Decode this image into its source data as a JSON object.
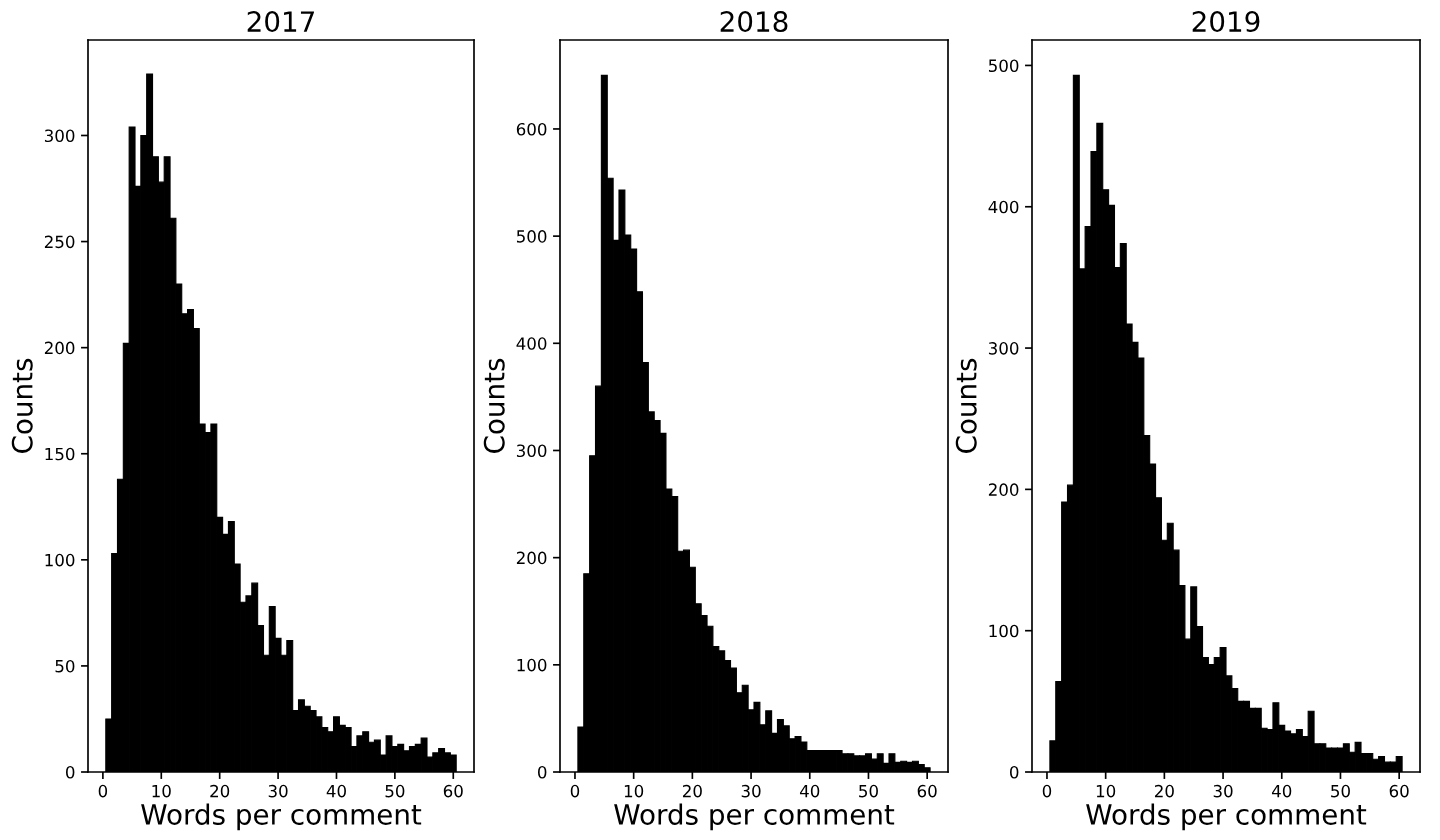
{
  "chart_data": [
    {
      "type": "histogram",
      "title": "2017",
      "xlabel": "Words per comment",
      "ylabel": "Counts",
      "color": "#000000",
      "bins": [
        0.5,
        1.5,
        2.5,
        3.5,
        4.5,
        5.5,
        6.5,
        7.5,
        8.5,
        9.5,
        10.5,
        11.5,
        12.5,
        13.5,
        14.5,
        15.5,
        16.5,
        17.5,
        18.5,
        19.5,
        20.5,
        21.5,
        22.5,
        23.5,
        24.5,
        25.5,
        26.5,
        27.5,
        28.5,
        29.5,
        30.5,
        31.5,
        32.5,
        33.5,
        34.5,
        35.5,
        36.5,
        37.5,
        38.5,
        39.5,
        40.5,
        41.5,
        42.5,
        43.5,
        44.5,
        45.5,
        46.5,
        47.5,
        48.5,
        49.5,
        50.5,
        51.5,
        52.5,
        53.5,
        54.5,
        55.5,
        56.5,
        57.5,
        58.5,
        59.5,
        60.5
      ],
      "values": [
        25,
        103,
        138,
        202,
        304,
        276,
        300,
        329,
        290,
        278,
        290,
        261,
        230,
        216,
        218,
        209,
        164,
        160,
        164,
        120,
        112,
        118,
        98,
        80,
        83,
        89,
        69,
        55,
        78,
        63,
        55,
        62,
        29,
        34,
        31,
        29,
        26,
        21,
        19,
        26,
        22,
        21,
        12,
        17,
        19,
        14,
        15,
        8,
        17,
        12,
        13,
        10,
        12,
        13,
        16,
        7,
        9,
        11,
        9,
        8
      ],
      "xlim": [
        -2.55,
        63.55
      ],
      "ylim": [
        0,
        345
      ],
      "xticks": [
        0,
        10,
        20,
        30,
        40,
        50,
        60
      ],
      "yticks": [
        0,
        50,
        100,
        150,
        200,
        250,
        300
      ]
    },
    {
      "type": "histogram",
      "title": "2018",
      "xlabel": "Words per comment",
      "ylabel": "Counts",
      "color": "#000000",
      "bins": [
        0.5,
        1.5,
        2.5,
        3.5,
        4.5,
        5.5,
        6.5,
        7.5,
        8.5,
        9.5,
        10.5,
        11.5,
        12.5,
        13.5,
        14.5,
        15.5,
        16.5,
        17.5,
        18.5,
        19.5,
        20.5,
        21.5,
        22.5,
        23.5,
        24.5,
        25.5,
        26.5,
        27.5,
        28.5,
        29.5,
        30.5,
        31.5,
        32.5,
        33.5,
        34.5,
        35.5,
        36.5,
        37.5,
        38.5,
        39.5,
        40.5,
        41.5,
        42.5,
        43.5,
        44.5,
        45.5,
        46.5,
        47.5,
        48.5,
        49.5,
        50.5,
        51.5,
        52.5,
        53.5,
        54.5,
        55.5,
        56.5,
        57.5,
        58.5,
        59.5,
        60.5
      ],
      "values": [
        42,
        185,
        295,
        360,
        650,
        554,
        496,
        543,
        501,
        488,
        448,
        382,
        336,
        328,
        316,
        264,
        257,
        206,
        207,
        191,
        157,
        146,
        136,
        117,
        113,
        104,
        97,
        74,
        81,
        58,
        65,
        44,
        57,
        36,
        49,
        43,
        31,
        33,
        28,
        20,
        20,
        20,
        20,
        20,
        20,
        17,
        17,
        15,
        15,
        17,
        12,
        17,
        8,
        17,
        9,
        10,
        9,
        10,
        7,
        4
      ],
      "xlim": [
        -2.55,
        63.55
      ],
      "ylim": [
        0,
        683
      ],
      "xticks": [
        0,
        10,
        20,
        30,
        40,
        50,
        60
      ],
      "yticks": [
        0,
        100,
        200,
        300,
        400,
        500,
        600
      ]
    },
    {
      "type": "histogram",
      "title": "2019",
      "xlabel": "Words per comment",
      "ylabel": "Counts",
      "color": "#000000",
      "bins": [
        0.5,
        1.5,
        2.5,
        3.5,
        4.5,
        5.5,
        6.5,
        7.5,
        8.5,
        9.5,
        10.5,
        11.5,
        12.5,
        13.5,
        14.5,
        15.5,
        16.5,
        17.5,
        18.5,
        19.5,
        20.5,
        21.5,
        22.5,
        23.5,
        24.5,
        25.5,
        26.5,
        27.5,
        28.5,
        29.5,
        30.5,
        31.5,
        32.5,
        33.5,
        34.5,
        35.5,
        36.5,
        37.5,
        38.5,
        39.5,
        40.5,
        41.5,
        42.5,
        43.5,
        44.5,
        45.5,
        46.5,
        47.5,
        48.5,
        49.5,
        50.5,
        51.5,
        52.5,
        53.5,
        54.5,
        55.5,
        56.5,
        57.5,
        58.5,
        59.5,
        60.5
      ],
      "values": [
        22,
        64,
        191,
        203,
        493,
        356,
        386,
        439,
        459,
        412,
        401,
        357,
        374,
        317,
        304,
        293,
        238,
        218,
        194,
        164,
        176,
        157,
        132,
        94,
        131,
        103,
        81,
        76,
        81,
        88,
        68,
        59,
        50,
        50,
        45,
        45,
        31,
        30,
        49,
        33,
        29,
        27,
        30,
        25,
        43,
        20,
        20,
        17,
        17,
        17,
        20,
        14,
        21,
        13,
        13,
        9,
        11,
        7,
        7,
        11
      ],
      "xlim": [
        -2.55,
        63.55
      ],
      "ylim": [
        0,
        518
      ],
      "xticks": [
        0,
        10,
        20,
        30,
        40,
        50,
        60
      ],
      "yticks": [
        0,
        100,
        200,
        300,
        400,
        500
      ]
    }
  ]
}
